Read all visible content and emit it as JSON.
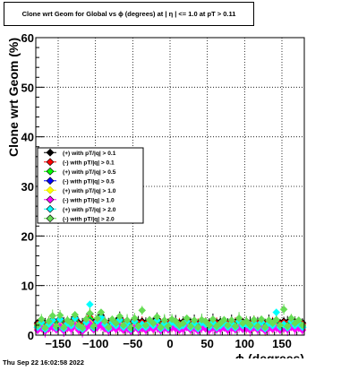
{
  "chart_data": {
    "type": "scatter",
    "title": "Clone wrt Geom for Global vs ϕ (degrees) at | η | <= 1.0 at pT > 0.11",
    "xlabel": "ϕ (degrees)",
    "ylabel": "Clone wrt Geom (%)",
    "xlim": [
      -180,
      180
    ],
    "ylim": [
      0,
      60
    ],
    "x_ticks": [
      -150,
      -100,
      -50,
      0,
      50,
      100,
      150
    ],
    "x_tick_labels": [
      "−150",
      "−100",
      "−50",
      "0",
      "50",
      "100",
      "150"
    ],
    "y_ticks": [
      0,
      10,
      20,
      30,
      40,
      50,
      60
    ],
    "grid": true,
    "legend_placement": "center-left",
    "series": [
      {
        "name": "(+) with pT/|q| > 0.1",
        "color": "#000000",
        "marker": "diamond",
        "y": [
          2.5,
          3.0,
          2.2,
          2.8,
          3.1,
          2.6,
          3.3,
          2.4,
          2.9,
          2.7,
          3.6,
          2.5,
          2.2,
          3.0,
          4.3,
          2.6,
          3.2,
          4.0,
          2.8,
          2.4,
          3.1,
          2.7,
          3.5,
          2.5,
          2.9,
          2.3,
          3.2,
          2.6,
          2.8,
          2.5,
          3.0,
          2.7,
          3.3,
          2.4,
          2.9,
          2.6,
          3.1,
          2.8,
          2.5,
          2.7,
          3.2,
          2.6,
          2.9,
          2.4,
          3.0,
          2.8,
          2.5,
          3.1,
          2.6,
          2.7,
          3.0,
          2.5,
          2.9,
          2.6,
          3.2,
          2.7,
          2.8,
          2.5,
          3.0,
          2.6,
          3.1,
          2.4,
          2.9,
          2.7,
          3.0,
          2.5,
          2.8,
          2.6,
          3.2,
          2.7,
          2.9,
          2.5
        ]
      },
      {
        "name": "(-) with pT/|q| > 0.1",
        "color": "#ff0000",
        "marker": "diamond",
        "y": [
          2.2,
          2.7,
          2.0,
          2.5,
          2.9,
          2.3,
          3.0,
          2.1,
          2.6,
          2.4,
          3.2,
          2.2,
          2.0,
          2.8,
          3.6,
          2.3,
          2.9,
          3.5,
          2.5,
          2.1,
          2.8,
          2.4,
          3.1,
          2.2,
          2.6,
          2.0,
          2.9,
          2.3,
          2.5,
          2.2,
          2.7,
          2.4,
          3.0,
          2.1,
          2.6,
          2.3,
          2.8,
          2.5,
          2.2,
          2.4,
          2.9,
          2.3,
          2.6,
          2.1,
          2.7,
          2.5,
          2.2,
          2.8,
          2.3,
          2.4,
          2.7,
          2.2,
          2.6,
          2.3,
          2.9,
          2.4,
          2.5,
          2.2,
          2.7,
          2.3,
          2.8,
          2.1,
          2.6,
          2.4,
          2.7,
          2.2,
          2.5,
          2.3,
          2.9,
          2.4,
          2.6,
          2.2
        ]
      },
      {
        "name": "(+) with pT/|q| > 0.5",
        "color": "#00ff00",
        "marker": "diamond",
        "y": [
          1.8,
          2.4,
          1.6,
          2.1,
          2.6,
          1.9,
          2.7,
          1.7,
          2.2,
          2.0,
          2.9,
          1.8,
          1.6,
          2.4,
          3.3,
          1.9,
          2.5,
          3.1,
          2.1,
          1.7,
          2.4,
          2.0,
          2.8,
          1.8,
          2.2,
          1.6,
          2.5,
          1.9,
          2.1,
          1.8,
          2.3,
          2.0,
          2.6,
          1.7,
          2.2,
          1.9,
          2.4,
          2.1,
          1.8,
          2.0,
          2.5,
          1.9,
          2.2,
          1.7,
          2.3,
          2.1,
          1.8,
          2.4,
          1.9,
          2.0,
          2.3,
          1.8,
          2.2,
          1.9,
          2.5,
          2.0,
          2.1,
          1.8,
          2.3,
          1.9,
          2.4,
          1.7,
          2.2,
          2.0,
          2.3,
          1.8,
          2.1,
          1.9,
          2.5,
          2.0,
          2.2,
          1.8
        ]
      },
      {
        "name": "(-) with pT/|q| > 0.5",
        "color": "#0000ff",
        "marker": "diamond",
        "y": [
          1.5,
          2.0,
          1.3,
          1.8,
          2.2,
          1.6,
          2.3,
          1.4,
          1.9,
          1.7,
          2.5,
          1.5,
          1.3,
          2.0,
          2.8,
          1.6,
          2.1,
          2.6,
          1.8,
          1.4,
          2.0,
          1.7,
          2.4,
          1.5,
          1.9,
          1.3,
          2.1,
          1.6,
          1.8,
          1.5,
          2.0,
          1.7,
          2.2,
          1.4,
          1.9,
          1.6,
          2.0,
          1.8,
          1.5,
          1.7,
          2.1,
          1.6,
          1.9,
          1.4,
          2.0,
          1.8,
          1.5,
          2.0,
          1.6,
          1.7,
          2.0,
          1.5,
          1.9,
          1.6,
          2.1,
          1.7,
          1.8,
          1.5,
          2.0,
          1.6,
          2.0,
          1.4,
          1.9,
          1.7,
          2.0,
          1.5,
          1.8,
          1.6,
          2.1,
          1.7,
          1.9,
          1.5
        ]
      },
      {
        "name": "(+) with pT/|q| > 1.0",
        "color": "#ffff00",
        "marker": "diamond",
        "y": [
          1.2,
          1.8,
          1.0,
          1.5,
          2.0,
          1.3,
          2.1,
          1.1,
          1.6,
          1.4,
          2.3,
          1.2,
          1.0,
          1.8,
          2.6,
          1.3,
          1.9,
          2.4,
          1.5,
          1.1,
          1.8,
          1.4,
          2.2,
          1.2,
          1.6,
          1.0,
          1.9,
          1.3,
          1.5,
          1.2,
          1.7,
          1.4,
          2.0,
          1.1,
          1.6,
          1.3,
          1.8,
          1.5,
          1.2,
          1.4,
          1.9,
          1.3,
          1.6,
          1.1,
          1.7,
          1.5,
          1.2,
          1.8,
          1.3,
          1.4,
          1.7,
          1.2,
          1.6,
          1.3,
          1.9,
          1.4,
          1.5,
          1.2,
          1.7,
          1.3,
          1.8,
          1.1,
          1.6,
          1.4,
          1.7,
          1.2,
          1.5,
          1.3,
          1.9,
          1.4,
          1.6,
          1.2
        ]
      },
      {
        "name": "(-) with pT/|q| > 1.0",
        "color": "#ff00ff",
        "marker": "diamond",
        "y": [
          1.0,
          1.5,
          0.8,
          1.3,
          1.7,
          1.1,
          1.8,
          0.9,
          1.4,
          1.2,
          2.0,
          1.0,
          0.8,
          1.5,
          2.3,
          1.1,
          1.6,
          2.1,
          1.3,
          0.9,
          1.5,
          1.2,
          1.9,
          1.0,
          1.4,
          0.8,
          1.6,
          1.1,
          1.3,
          1.0,
          1.5,
          1.2,
          1.7,
          0.9,
          1.4,
          1.1,
          1.5,
          1.3,
          1.0,
          1.2,
          1.6,
          1.1,
          1.4,
          0.9,
          1.5,
          1.3,
          1.0,
          1.5,
          1.1,
          1.2,
          1.5,
          1.0,
          1.4,
          1.1,
          1.6,
          1.2,
          1.3,
          1.0,
          1.5,
          1.1,
          1.5,
          0.9,
          1.4,
          1.2,
          1.5,
          1.0,
          1.3,
          1.1,
          1.6,
          1.2,
          1.4,
          1.0
        ]
      },
      {
        "name": "(+) with pT/|q| > 2.0",
        "color": "#00ffff",
        "marker": "diamond",
        "y": [
          1.6,
          2.6,
          1.2,
          2.2,
          3.0,
          1.5,
          3.2,
          1.3,
          2.4,
          1.9,
          3.4,
          1.6,
          1.2,
          2.6,
          6.2,
          1.5,
          2.8,
          3.6,
          2.2,
          1.3,
          2.6,
          1.9,
          3.1,
          1.6,
          2.4,
          1.2,
          2.8,
          1.5,
          2.2,
          1.6,
          2.5,
          1.9,
          3.0,
          1.3,
          2.4,
          1.5,
          2.6,
          2.2,
          1.6,
          1.9,
          2.8,
          1.5,
          2.4,
          1.3,
          2.5,
          2.2,
          1.6,
          2.6,
          1.5,
          1.9,
          2.5,
          1.6,
          2.4,
          1.5,
          2.8,
          1.9,
          2.2,
          1.6,
          2.5,
          1.5,
          2.6,
          1.3,
          2.4,
          1.9,
          4.6,
          1.6,
          2.2,
          1.5,
          2.8,
          1.9,
          2.4,
          1.6
        ]
      },
      {
        "name": "(-) with pT/|q| > 2.0",
        "color": "#66dd55",
        "marker": "diamond",
        "y": [
          2.0,
          3.2,
          1.5,
          2.8,
          3.9,
          1.8,
          4.0,
          1.6,
          3.0,
          2.4,
          4.1,
          2.0,
          1.5,
          3.2,
          4.4,
          1.8,
          3.4,
          4.6,
          2.8,
          1.6,
          3.2,
          2.4,
          3.8,
          2.0,
          3.0,
          1.5,
          3.4,
          1.8,
          5.0,
          2.0,
          3.1,
          2.4,
          3.7,
          1.6,
          3.0,
          1.8,
          3.2,
          2.8,
          2.0,
          2.4,
          3.4,
          1.8,
          3.0,
          1.6,
          3.1,
          2.8,
          2.0,
          3.2,
          1.8,
          2.4,
          3.1,
          2.0,
          3.0,
          1.8,
          3.4,
          2.4,
          2.8,
          2.0,
          3.1,
          1.8,
          3.2,
          1.6,
          3.0,
          2.4,
          3.1,
          2.0,
          5.2,
          1.8,
          3.4,
          2.4,
          3.0,
          2.0
        ]
      }
    ]
  },
  "footer": {
    "date": "Thu Sep 22 16:02:58 2022"
  }
}
